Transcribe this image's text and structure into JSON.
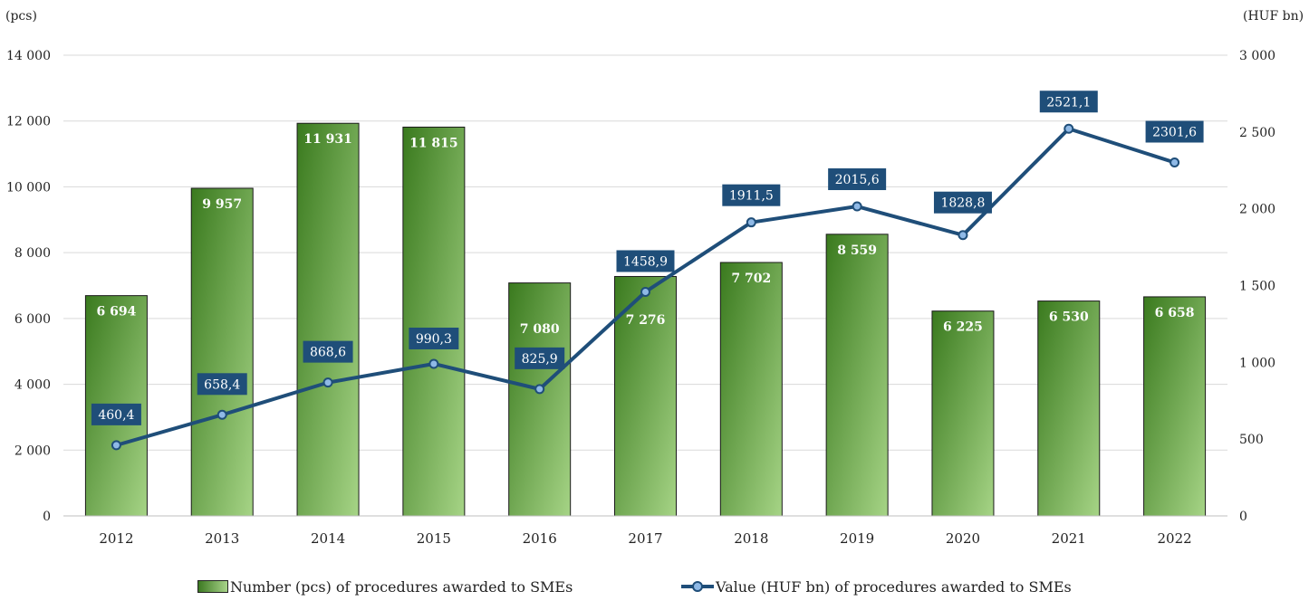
{
  "chart_data": {
    "type": "bar",
    "categories": [
      "2012",
      "2013",
      "2014",
      "2015",
      "2016",
      "2017",
      "2018",
      "2019",
      "2020",
      "2021",
      "2022"
    ],
    "series": [
      {
        "name": "Number (pcs) of procedures awarded to SMEs",
        "type": "bar",
        "axis": "left",
        "values": [
          6694,
          9957,
          11931,
          11815,
          7080,
          7276,
          7702,
          8559,
          6225,
          6530,
          6658
        ],
        "labels": [
          "6 694",
          "9 957",
          "11 931",
          "11 815",
          "7 080",
          "7 276",
          "7 702",
          "8 559",
          "6 225",
          "6 530",
          "6 658"
        ]
      },
      {
        "name": "Value (HUF bn) of procedures awarded to SMEs",
        "type": "line",
        "axis": "right",
        "values": [
          460.4,
          658.4,
          868.6,
          990.3,
          825.9,
          1458.9,
          1911.5,
          2015.6,
          1828.8,
          2521.1,
          2301.6
        ],
        "labels": [
          "460,4",
          "658,4",
          "868,6",
          "990,3",
          "825,9",
          "1458,9",
          "1911,5",
          "2015,6",
          "1828,8",
          "2521,1",
          "2301,6"
        ]
      }
    ],
    "y_left": {
      "unit": "(pcs)",
      "ylim": [
        0,
        14000
      ],
      "ticks": [
        0,
        2000,
        4000,
        6000,
        8000,
        10000,
        12000,
        14000
      ],
      "tick_labels": [
        "0",
        "2 000",
        "4 000",
        "6 000",
        "8 000",
        "10 000",
        "12 000",
        "14 000"
      ]
    },
    "y_right": {
      "unit": "(HUF bn)",
      "ylim": [
        0,
        3000
      ],
      "ticks": [
        0,
        500,
        1000,
        1500,
        2000,
        2500,
        3000
      ],
      "tick_labels": [
        "0",
        "500",
        "1 000",
        "1 500",
        "2 000",
        "2 500",
        "3 000"
      ]
    },
    "grid": true,
    "legend_position": "bottom",
    "colors": {
      "bar_dark": "#3a7a1e",
      "bar_light": "#a6d486",
      "bar_border": "#1a1a1a",
      "line": "#1f4e79",
      "marker_fill": "#8fb9e6",
      "label_box": "#1f4e79",
      "grid": "#d9d9d9"
    }
  }
}
